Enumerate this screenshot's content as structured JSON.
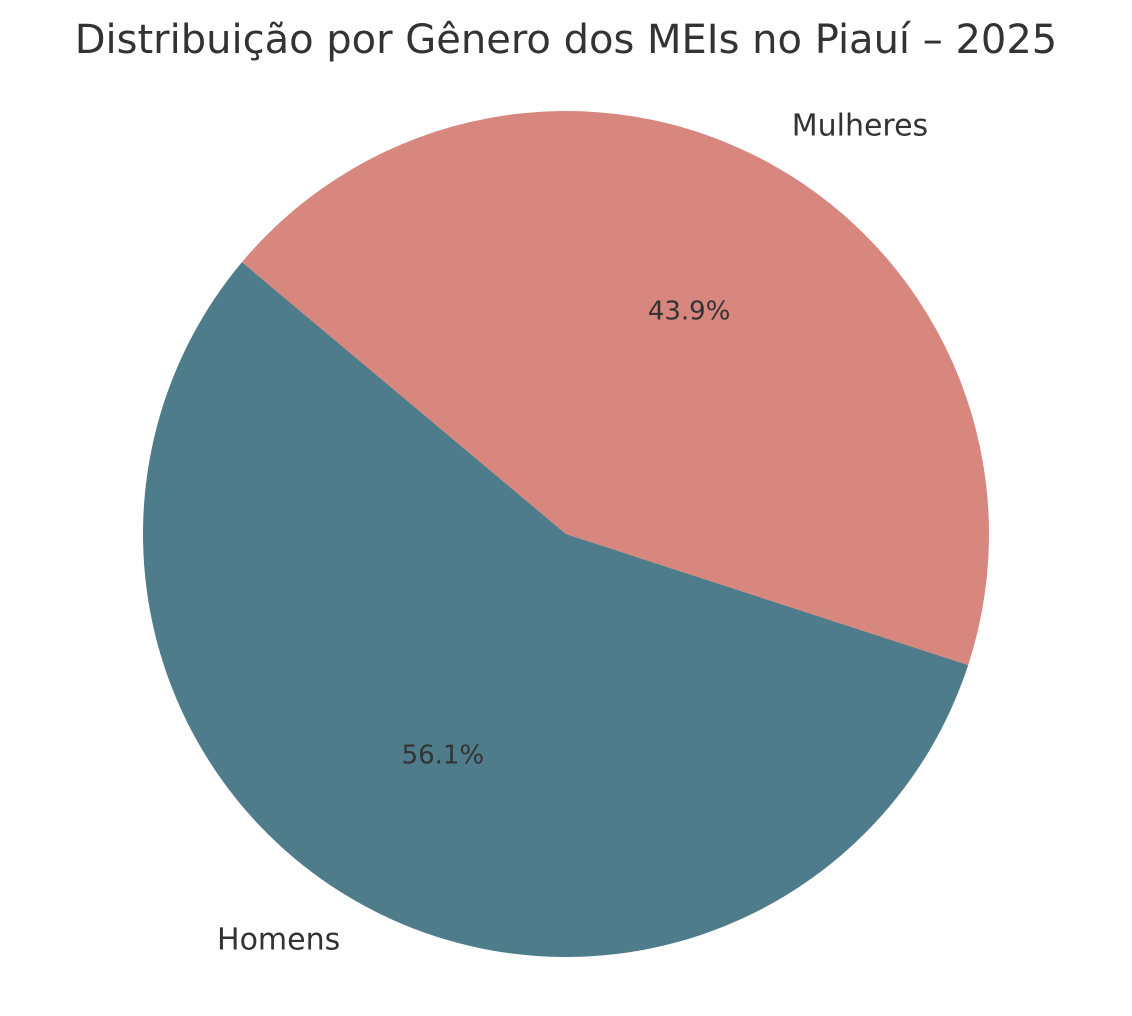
{
  "chart_data": {
    "type": "pie",
    "title": "Distribuição por Gênero dos MEIs no Piauí – 2025",
    "categories": [
      "Homens",
      "Mulheres"
    ],
    "values": [
      56.1,
      43.9
    ],
    "value_labels": [
      "56.1%",
      "43.9%"
    ],
    "colors": [
      "#4f7c8a",
      "#d7877e"
    ],
    "start_angle": 140
  }
}
